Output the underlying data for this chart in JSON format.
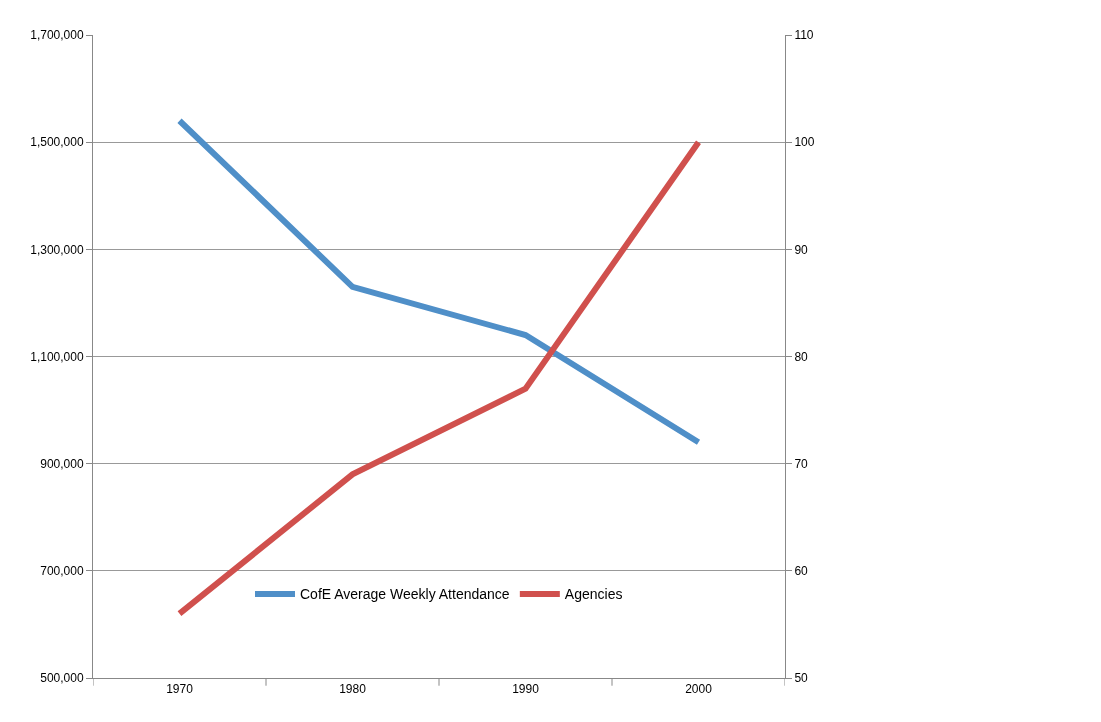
{
  "chart_data": {
    "type": "line",
    "categories": [
      "1970",
      "1980",
      "1990",
      "2000"
    ],
    "series": [
      {
        "name": "CofE Average Weekly Attendance",
        "color": "#4f8fc8",
        "values": [
          1540000,
          1230000,
          1140000,
          940000
        ]
      },
      {
        "name": "Agencies",
        "color": "#d0504d",
        "values": [
          56,
          69,
          77,
          100
        ],
        "axis": "y2"
      }
    ],
    "ylim": [
      500000,
      1700000
    ],
    "yticks": [
      {
        "value": 500000,
        "label": "500,000"
      },
      {
        "value": 700000,
        "label": "700,000"
      },
      {
        "value": 900000,
        "label": "900,000"
      },
      {
        "value": 1100000,
        "label": "1,100,000"
      },
      {
        "value": 1300000,
        "label": "1,300,000"
      },
      {
        "value": 1500000,
        "label": "1,500,000"
      },
      {
        "value": 1700000,
        "label": "1,700,000"
      }
    ],
    "y2lim": [
      50,
      110
    ],
    "y2ticks": [
      50,
      60,
      70,
      80,
      90,
      100,
      110
    ],
    "grid": "y",
    "legend": "bottom",
    "marker": "none",
    "line_style": "solid"
  }
}
